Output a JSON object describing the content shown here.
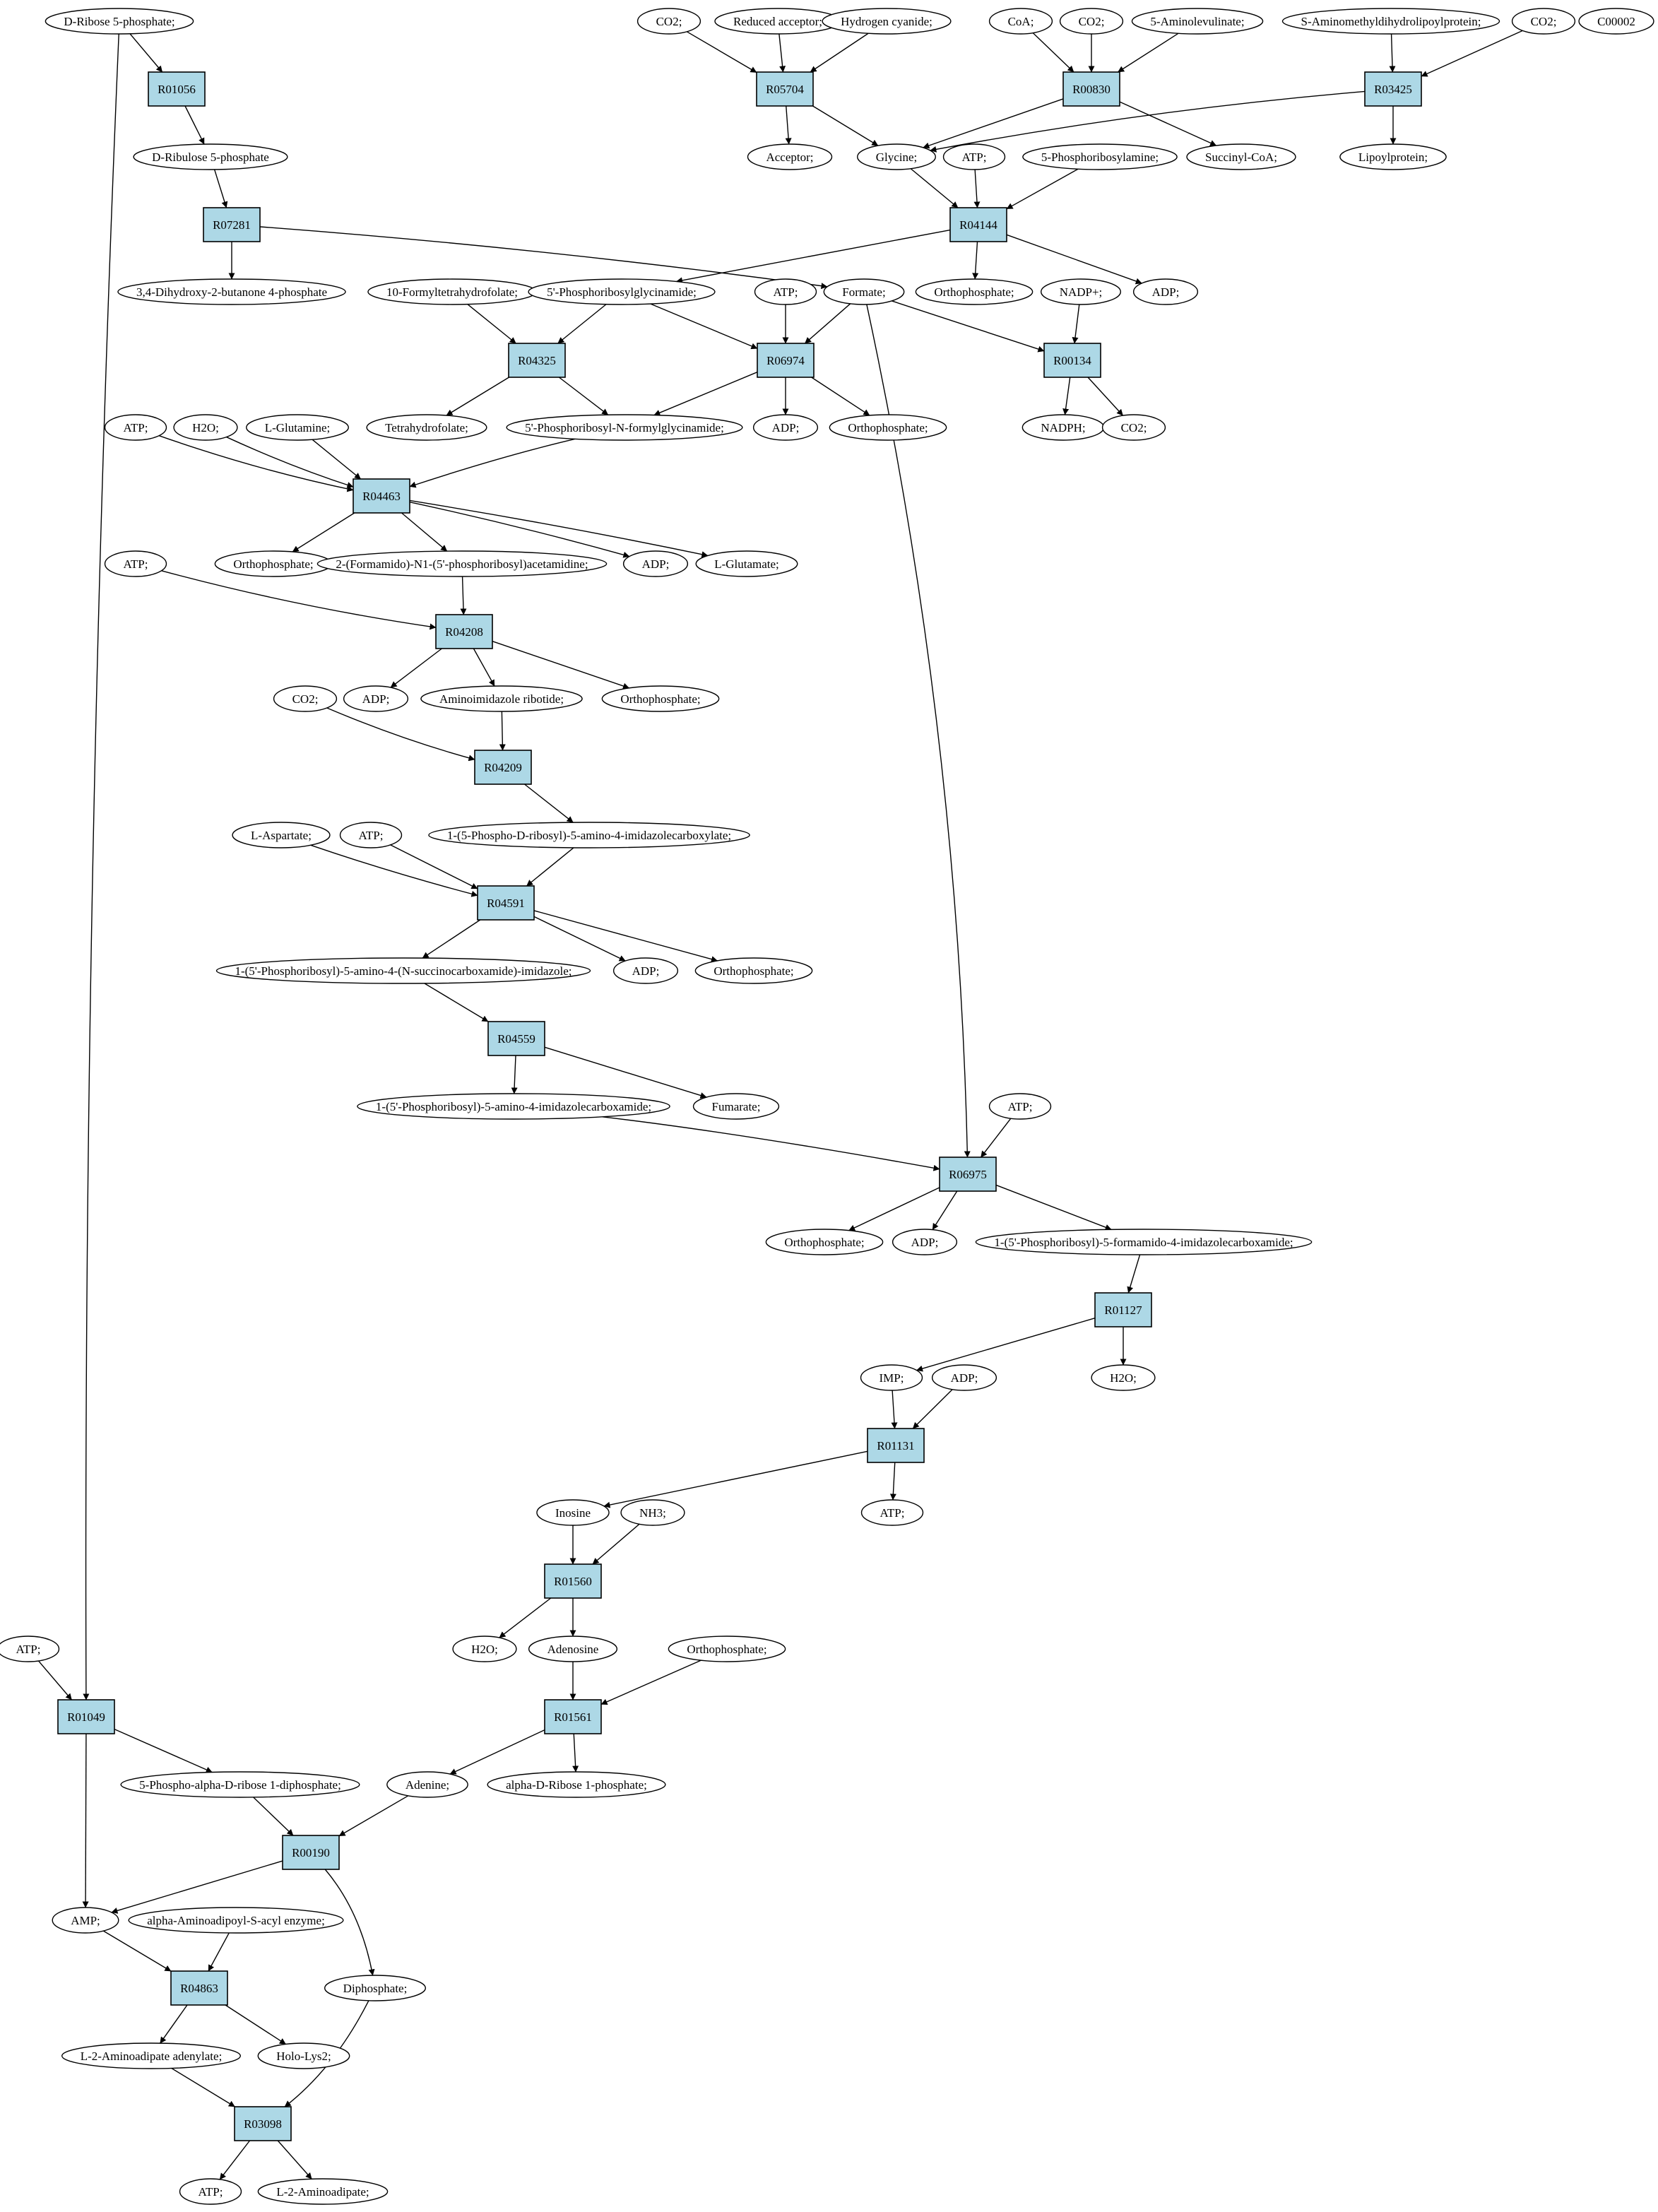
{
  "colors": {
    "reaction_fill": "#add8e6",
    "start_fill": "#00ee00",
    "target_fill": "#ffff00",
    "compound_fill": "#ffffff",
    "edge": "#000000"
  },
  "nodes": [
    {
      "id": "c_dr5p",
      "kind": "start",
      "label": "D-Ribose 5-phosphate;"
    },
    {
      "id": "c_c00002",
      "kind": "target",
      "label": "C00002"
    },
    {
      "id": "r01056",
      "kind": "reaction",
      "label": "R01056"
    },
    {
      "id": "c_drul5p",
      "kind": "compound",
      "label": "D-Ribulose 5-phosphate"
    },
    {
      "id": "r07281",
      "kind": "reaction",
      "label": "R07281"
    },
    {
      "id": "c_dhbp",
      "kind": "compound",
      "label": "3,4-Dihydroxy-2-butanone 4-phosphate"
    },
    {
      "id": "c_co2_a",
      "kind": "compound",
      "label": "CO2;"
    },
    {
      "id": "c_redacc",
      "kind": "compound",
      "label": "Reduced acceptor;"
    },
    {
      "id": "c_hcn",
      "kind": "compound",
      "label": "Hydrogen cyanide;"
    },
    {
      "id": "c_coa",
      "kind": "compound",
      "label": "CoA;"
    },
    {
      "id": "c_co2_b",
      "kind": "compound",
      "label": "CO2;"
    },
    {
      "id": "c_ala",
      "kind": "compound",
      "label": "5-Aminolevulinate;"
    },
    {
      "id": "c_samdl",
      "kind": "compound",
      "label": "S-Aminomethyldihydrolipoylprotein;"
    },
    {
      "id": "c_co2_c",
      "kind": "compound",
      "label": "CO2;"
    },
    {
      "id": "r05704",
      "kind": "reaction",
      "label": "R05704"
    },
    {
      "id": "r00830",
      "kind": "reaction",
      "label": "R00830"
    },
    {
      "id": "r03425",
      "kind": "reaction",
      "label": "R03425"
    },
    {
      "id": "c_acceptor",
      "kind": "compound",
      "label": "Acceptor;"
    },
    {
      "id": "c_glycine",
      "kind": "compound",
      "label": "Glycine;"
    },
    {
      "id": "c_atp_1",
      "kind": "compound",
      "label": "ATP;"
    },
    {
      "id": "c_prna",
      "kind": "compound",
      "label": "5-Phosphoribosylamine;"
    },
    {
      "id": "c_succoa",
      "kind": "compound",
      "label": "Succinyl-CoA;"
    },
    {
      "id": "c_lipoyl",
      "kind": "compound",
      "label": "Lipoylprotein;"
    },
    {
      "id": "r04144",
      "kind": "reaction",
      "label": "R04144"
    },
    {
      "id": "c_10fthf",
      "kind": "compound",
      "label": "10-Formyltetrahydrofolate;"
    },
    {
      "id": "c_gar",
      "kind": "compound",
      "label": "5'-Phosphoribosylglycinamide;"
    },
    {
      "id": "c_atp_2",
      "kind": "compound",
      "label": "ATP;"
    },
    {
      "id": "c_formate",
      "kind": "compound",
      "label": "Formate;"
    },
    {
      "id": "c_pi_1",
      "kind": "compound",
      "label": "Orthophosphate;"
    },
    {
      "id": "c_nadp",
      "kind": "compound",
      "label": "NADP+;"
    },
    {
      "id": "c_adp_1",
      "kind": "compound",
      "label": "ADP;"
    },
    {
      "id": "r04325",
      "kind": "reaction",
      "label": "R04325"
    },
    {
      "id": "r06974",
      "kind": "reaction",
      "label": "R06974"
    },
    {
      "id": "r00134",
      "kind": "reaction",
      "label": "R00134"
    },
    {
      "id": "c_thf",
      "kind": "compound",
      "label": "Tetrahydrofolate;"
    },
    {
      "id": "c_fgar",
      "kind": "compound",
      "label": "5'-Phosphoribosyl-N-formylglycinamide;"
    },
    {
      "id": "c_adp_2",
      "kind": "compound",
      "label": "ADP;"
    },
    {
      "id": "c_pi_2",
      "kind": "compound",
      "label": "Orthophosphate;"
    },
    {
      "id": "c_nadph",
      "kind": "compound",
      "label": "NADPH;"
    },
    {
      "id": "c_co2_d",
      "kind": "compound",
      "label": "CO2;"
    },
    {
      "id": "c_atp_3",
      "kind": "compound",
      "label": "ATP;"
    },
    {
      "id": "c_h2o_1",
      "kind": "compound",
      "label": "H2O;"
    },
    {
      "id": "c_gln",
      "kind": "compound",
      "label": "L-Glutamine;"
    },
    {
      "id": "r04463",
      "kind": "reaction",
      "label": "R04463"
    },
    {
      "id": "c_pi_3",
      "kind": "compound",
      "label": "Orthophosphate;"
    },
    {
      "id": "c_fgam",
      "kind": "compound",
      "label": "2-(Formamido)-N1-(5'-phosphoribosyl)acetamidine;"
    },
    {
      "id": "c_adp_3",
      "kind": "compound",
      "label": "ADP;"
    },
    {
      "id": "c_glu",
      "kind": "compound",
      "label": "L-Glutamate;"
    },
    {
      "id": "c_atp_4",
      "kind": "compound",
      "label": "ATP;"
    },
    {
      "id": "r04208",
      "kind": "reaction",
      "label": "R04208"
    },
    {
      "id": "c_adp_4",
      "kind": "compound",
      "label": "ADP;"
    },
    {
      "id": "c_air",
      "kind": "compound",
      "label": "Aminoimidazole ribotide;"
    },
    {
      "id": "c_pi_4",
      "kind": "compound",
      "label": "Orthophosphate;"
    },
    {
      "id": "c_co2_e",
      "kind": "compound",
      "label": "CO2;"
    },
    {
      "id": "r04209",
      "kind": "reaction",
      "label": "R04209"
    },
    {
      "id": "c_cair",
      "kind": "compound",
      "label": "1-(5-Phospho-D-ribosyl)-5-amino-4-imidazolecarboxylate;"
    },
    {
      "id": "c_asp",
      "kind": "compound",
      "label": "L-Aspartate;"
    },
    {
      "id": "c_atp_5",
      "kind": "compound",
      "label": "ATP;"
    },
    {
      "id": "r04591",
      "kind": "reaction",
      "label": "R04591"
    },
    {
      "id": "c_saicar",
      "kind": "compound",
      "label": "1-(5'-Phosphoribosyl)-5-amino-4-(N-succinocarboxamide)-imidazole;"
    },
    {
      "id": "c_adp_5",
      "kind": "compound",
      "label": "ADP;"
    },
    {
      "id": "c_pi_5",
      "kind": "compound",
      "label": "Orthophosphate;"
    },
    {
      "id": "r04559",
      "kind": "reaction",
      "label": "R04559"
    },
    {
      "id": "c_aicar",
      "kind": "compound",
      "label": "1-(5'-Phosphoribosyl)-5-amino-4-imidazolecarboxamide;"
    },
    {
      "id": "c_fumarate",
      "kind": "compound",
      "label": "Fumarate;"
    },
    {
      "id": "c_atp_6",
      "kind": "compound",
      "label": "ATP;"
    },
    {
      "id": "r06975",
      "kind": "reaction",
      "label": "R06975"
    },
    {
      "id": "c_pi_6",
      "kind": "compound",
      "label": "Orthophosphate;"
    },
    {
      "id": "c_adp_6",
      "kind": "compound",
      "label": "ADP;"
    },
    {
      "id": "c_faicar",
      "kind": "compound",
      "label": "1-(5'-Phosphoribosyl)-5-formamido-4-imidazolecarboxamide;"
    },
    {
      "id": "r01127",
      "kind": "reaction",
      "label": "R01127"
    },
    {
      "id": "c_imp",
      "kind": "compound",
      "label": "IMP;"
    },
    {
      "id": "c_adp_7",
      "kind": "compound",
      "label": "ADP;"
    },
    {
      "id": "c_h2o_2",
      "kind": "compound",
      "label": "H2O;"
    },
    {
      "id": "r01131",
      "kind": "reaction",
      "label": "R01131"
    },
    {
      "id": "c_inosine",
      "kind": "compound",
      "label": "Inosine"
    },
    {
      "id": "c_nh3",
      "kind": "compound",
      "label": "NH3;"
    },
    {
      "id": "c_atp_7",
      "kind": "compound",
      "label": "ATP;"
    },
    {
      "id": "r01560",
      "kind": "reaction",
      "label": "R01560"
    },
    {
      "id": "c_h2o_3",
      "kind": "compound",
      "label": "H2O;"
    },
    {
      "id": "c_adenosine",
      "kind": "compound",
      "label": "Adenosine"
    },
    {
      "id": "c_pi_7",
      "kind": "compound",
      "label": "Orthophosphate;"
    },
    {
      "id": "c_atp_8",
      "kind": "compound",
      "label": "ATP;"
    },
    {
      "id": "r01049",
      "kind": "reaction",
      "label": "R01049"
    },
    {
      "id": "r01561",
      "kind": "reaction",
      "label": "R01561"
    },
    {
      "id": "c_prpp",
      "kind": "compound",
      "label": "5-Phospho-alpha-D-ribose 1-diphosphate;"
    },
    {
      "id": "c_adenine",
      "kind": "compound",
      "label": "Adenine;"
    },
    {
      "id": "c_r1p",
      "kind": "compound",
      "label": "alpha-D-Ribose 1-phosphate;"
    },
    {
      "id": "r00190",
      "kind": "reaction",
      "label": "R00190"
    },
    {
      "id": "c_amp",
      "kind": "compound",
      "label": "AMP;"
    },
    {
      "id": "c_aasa",
      "kind": "compound",
      "label": "alpha-Aminoadipoyl-S-acyl enzyme;"
    },
    {
      "id": "c_ppi",
      "kind": "compound",
      "label": "Diphosphate;"
    },
    {
      "id": "r04863",
      "kind": "reaction",
      "label": "R04863"
    },
    {
      "id": "c_l2aa_aden",
      "kind": "compound",
      "label": "L-2-Aminoadipate adenylate;"
    },
    {
      "id": "c_holo",
      "kind": "compound",
      "label": "Holo-Lys2;"
    },
    {
      "id": "r03098",
      "kind": "reaction",
      "label": "R03098"
    },
    {
      "id": "c_atp_9",
      "kind": "compound",
      "label": "ATP;"
    },
    {
      "id": "c_l2aa",
      "kind": "compound",
      "label": "L-2-Aminoadipate;"
    }
  ],
  "edges": [
    [
      "c_dr5p",
      "r01056"
    ],
    [
      "c_dr5p",
      "r01049"
    ],
    [
      "r01056",
      "c_drul5p"
    ],
    [
      "c_drul5p",
      "r07281"
    ],
    [
      "r07281",
      "c_dhbp"
    ],
    [
      "r07281",
      "c_formate"
    ],
    [
      "c_co2_a",
      "r05704"
    ],
    [
      "c_redacc",
      "r05704"
    ],
    [
      "c_hcn",
      "r05704"
    ],
    [
      "r05704",
      "c_acceptor"
    ],
    [
      "r05704",
      "c_glycine"
    ],
    [
      "c_coa",
      "r00830"
    ],
    [
      "c_co2_b",
      "r00830"
    ],
    [
      "c_ala",
      "r00830"
    ],
    [
      "r00830",
      "c_glycine"
    ],
    [
      "r00830",
      "c_succoa"
    ],
    [
      "c_samdl",
      "r03425"
    ],
    [
      "c_co2_c",
      "r03425"
    ],
    [
      "r03425",
      "c_glycine"
    ],
    [
      "r03425",
      "c_lipoyl"
    ],
    [
      "c_glycine",
      "r04144"
    ],
    [
      "c_atp_1",
      "r04144"
    ],
    [
      "c_prna",
      "r04144"
    ],
    [
      "r04144",
      "c_gar"
    ],
    [
      "r04144",
      "c_pi_1"
    ],
    [
      "r04144",
      "c_adp_1"
    ],
    [
      "c_10fthf",
      "r04325"
    ],
    [
      "c_gar",
      "r04325"
    ],
    [
      "r04325",
      "c_thf"
    ],
    [
      "r04325",
      "c_fgar"
    ],
    [
      "c_gar",
      "r06974"
    ],
    [
      "c_atp_2",
      "r06974"
    ],
    [
      "c_formate",
      "r06974"
    ],
    [
      "r06974",
      "c_fgar"
    ],
    [
      "r06974",
      "c_adp_2"
    ],
    [
      "r06974",
      "c_pi_2"
    ],
    [
      "c_formate",
      "r00134"
    ],
    [
      "c_nadp",
      "r00134"
    ],
    [
      "r00134",
      "c_nadph"
    ],
    [
      "r00134",
      "c_co2_d"
    ],
    [
      "c_formate",
      "r06975"
    ],
    [
      "c_atp_3",
      "r04463"
    ],
    [
      "c_h2o_1",
      "r04463"
    ],
    [
      "c_gln",
      "r04463"
    ],
    [
      "c_fgar",
      "r04463"
    ],
    [
      "r04463",
      "c_pi_3"
    ],
    [
      "r04463",
      "c_fgam"
    ],
    [
      "r04463",
      "c_adp_3"
    ],
    [
      "r04463",
      "c_glu"
    ],
    [
      "c_atp_4",
      "r04208"
    ],
    [
      "c_fgam",
      "r04208"
    ],
    [
      "r04208",
      "c_adp_4"
    ],
    [
      "r04208",
      "c_air"
    ],
    [
      "r04208",
      "c_pi_4"
    ],
    [
      "c_co2_e",
      "r04209"
    ],
    [
      "c_air",
      "r04209"
    ],
    [
      "r04209",
      "c_cair"
    ],
    [
      "c_asp",
      "r04591"
    ],
    [
      "c_atp_5",
      "r04591"
    ],
    [
      "c_cair",
      "r04591"
    ],
    [
      "r04591",
      "c_saicar"
    ],
    [
      "r04591",
      "c_adp_5"
    ],
    [
      "r04591",
      "c_pi_5"
    ],
    [
      "c_saicar",
      "r04559"
    ],
    [
      "r04559",
      "c_aicar"
    ],
    [
      "r04559",
      "c_fumarate"
    ],
    [
      "c_aicar",
      "r06975"
    ],
    [
      "c_atp_6",
      "r06975"
    ],
    [
      "r06975",
      "c_pi_6"
    ],
    [
      "r06975",
      "c_adp_6"
    ],
    [
      "r06975",
      "c_faicar"
    ],
    [
      "c_faicar",
      "r01127"
    ],
    [
      "r01127",
      "c_imp"
    ],
    [
      "r01127",
      "c_h2o_2"
    ],
    [
      "c_imp",
      "r01131"
    ],
    [
      "c_adp_7",
      "r01131"
    ],
    [
      "r01131",
      "c_inosine"
    ],
    [
      "r01131",
      "c_atp_7"
    ],
    [
      "c_inosine",
      "r01560"
    ],
    [
      "c_nh3",
      "r01560"
    ],
    [
      "r01560",
      "c_h2o_3"
    ],
    [
      "r01560",
      "c_adenosine"
    ],
    [
      "c_adenosine",
      "r01561"
    ],
    [
      "c_pi_7",
      "r01561"
    ],
    [
      "r01561",
      "c_adenine"
    ],
    [
      "r01561",
      "c_r1p"
    ],
    [
      "c_atp_8",
      "r01049"
    ],
    [
      "r01049",
      "c_prpp"
    ],
    [
      "r01049",
      "c_amp"
    ],
    [
      "c_prpp",
      "r00190"
    ],
    [
      "c_adenine",
      "r00190"
    ],
    [
      "r00190",
      "c_amp"
    ],
    [
      "r00190",
      "c_ppi"
    ],
    [
      "c_amp",
      "r04863"
    ],
    [
      "c_aasa",
      "r04863"
    ],
    [
      "r04863",
      "c_l2aa_aden"
    ],
    [
      "r04863",
      "c_holo"
    ],
    [
      "c_l2aa_aden",
      "r03098"
    ],
    [
      "c_ppi",
      "r03098"
    ],
    [
      "r03098",
      "c_atp_9"
    ],
    [
      "r03098",
      "c_l2aa"
    ]
  ]
}
